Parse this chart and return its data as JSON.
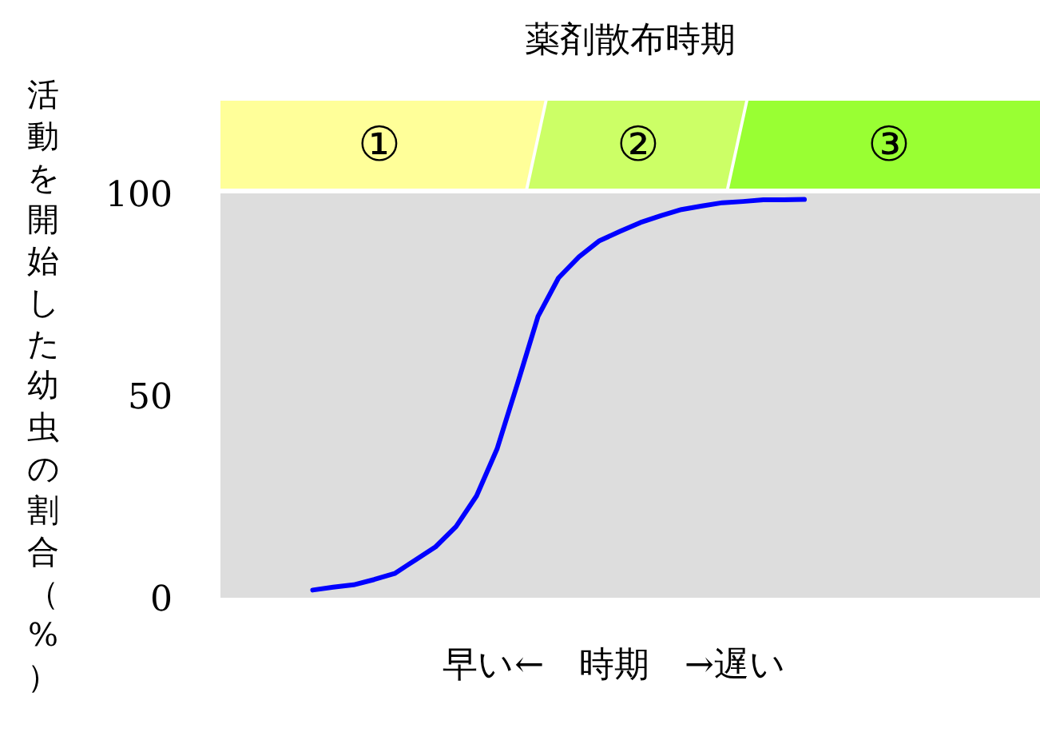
{
  "chart_data": {
    "type": "line",
    "title": "薬剤散布時期",
    "xlabel": "早い←　時期　→遅い",
    "ylabel": "活動を開始した幼虫の割合（%）",
    "categories": [
      null,
      null,
      null,
      null,
      null,
      null,
      null,
      null,
      null,
      null,
      null,
      null,
      null,
      null,
      null,
      null,
      null,
      null,
      null,
      null,
      null,
      null,
      null,
      null,
      null,
      null,
      null,
      null,
      null,
      null,
      null,
      null,
      null,
      null,
      null,
      null,
      null,
      null,
      null,
      null
    ],
    "series": [
      {
        "color": "#0000ff",
        "values": [
          null,
          null,
          null,
          null,
          1.9,
          2.6,
          3.2,
          4.5,
          6.0,
          9.3,
          12.6,
          17.6,
          25.2,
          36.8,
          53.0,
          69.6,
          79.1,
          84.3,
          88.3,
          90.6,
          92.8,
          94.5,
          96.0,
          96.9,
          97.7,
          98.0,
          98.4,
          98.4,
          98.5,
          null,
          null,
          null,
          null,
          null,
          null,
          null,
          null,
          null,
          null,
          null
        ]
      }
    ],
    "ylim": [
      0,
      100
    ],
    "yticks": [
      0,
      50,
      100
    ],
    "tick_labels": "y",
    "grid": false,
    "marker": "none",
    "line_style": "solid",
    "annotations": [
      "①",
      "②",
      "③"
    ]
  }
}
